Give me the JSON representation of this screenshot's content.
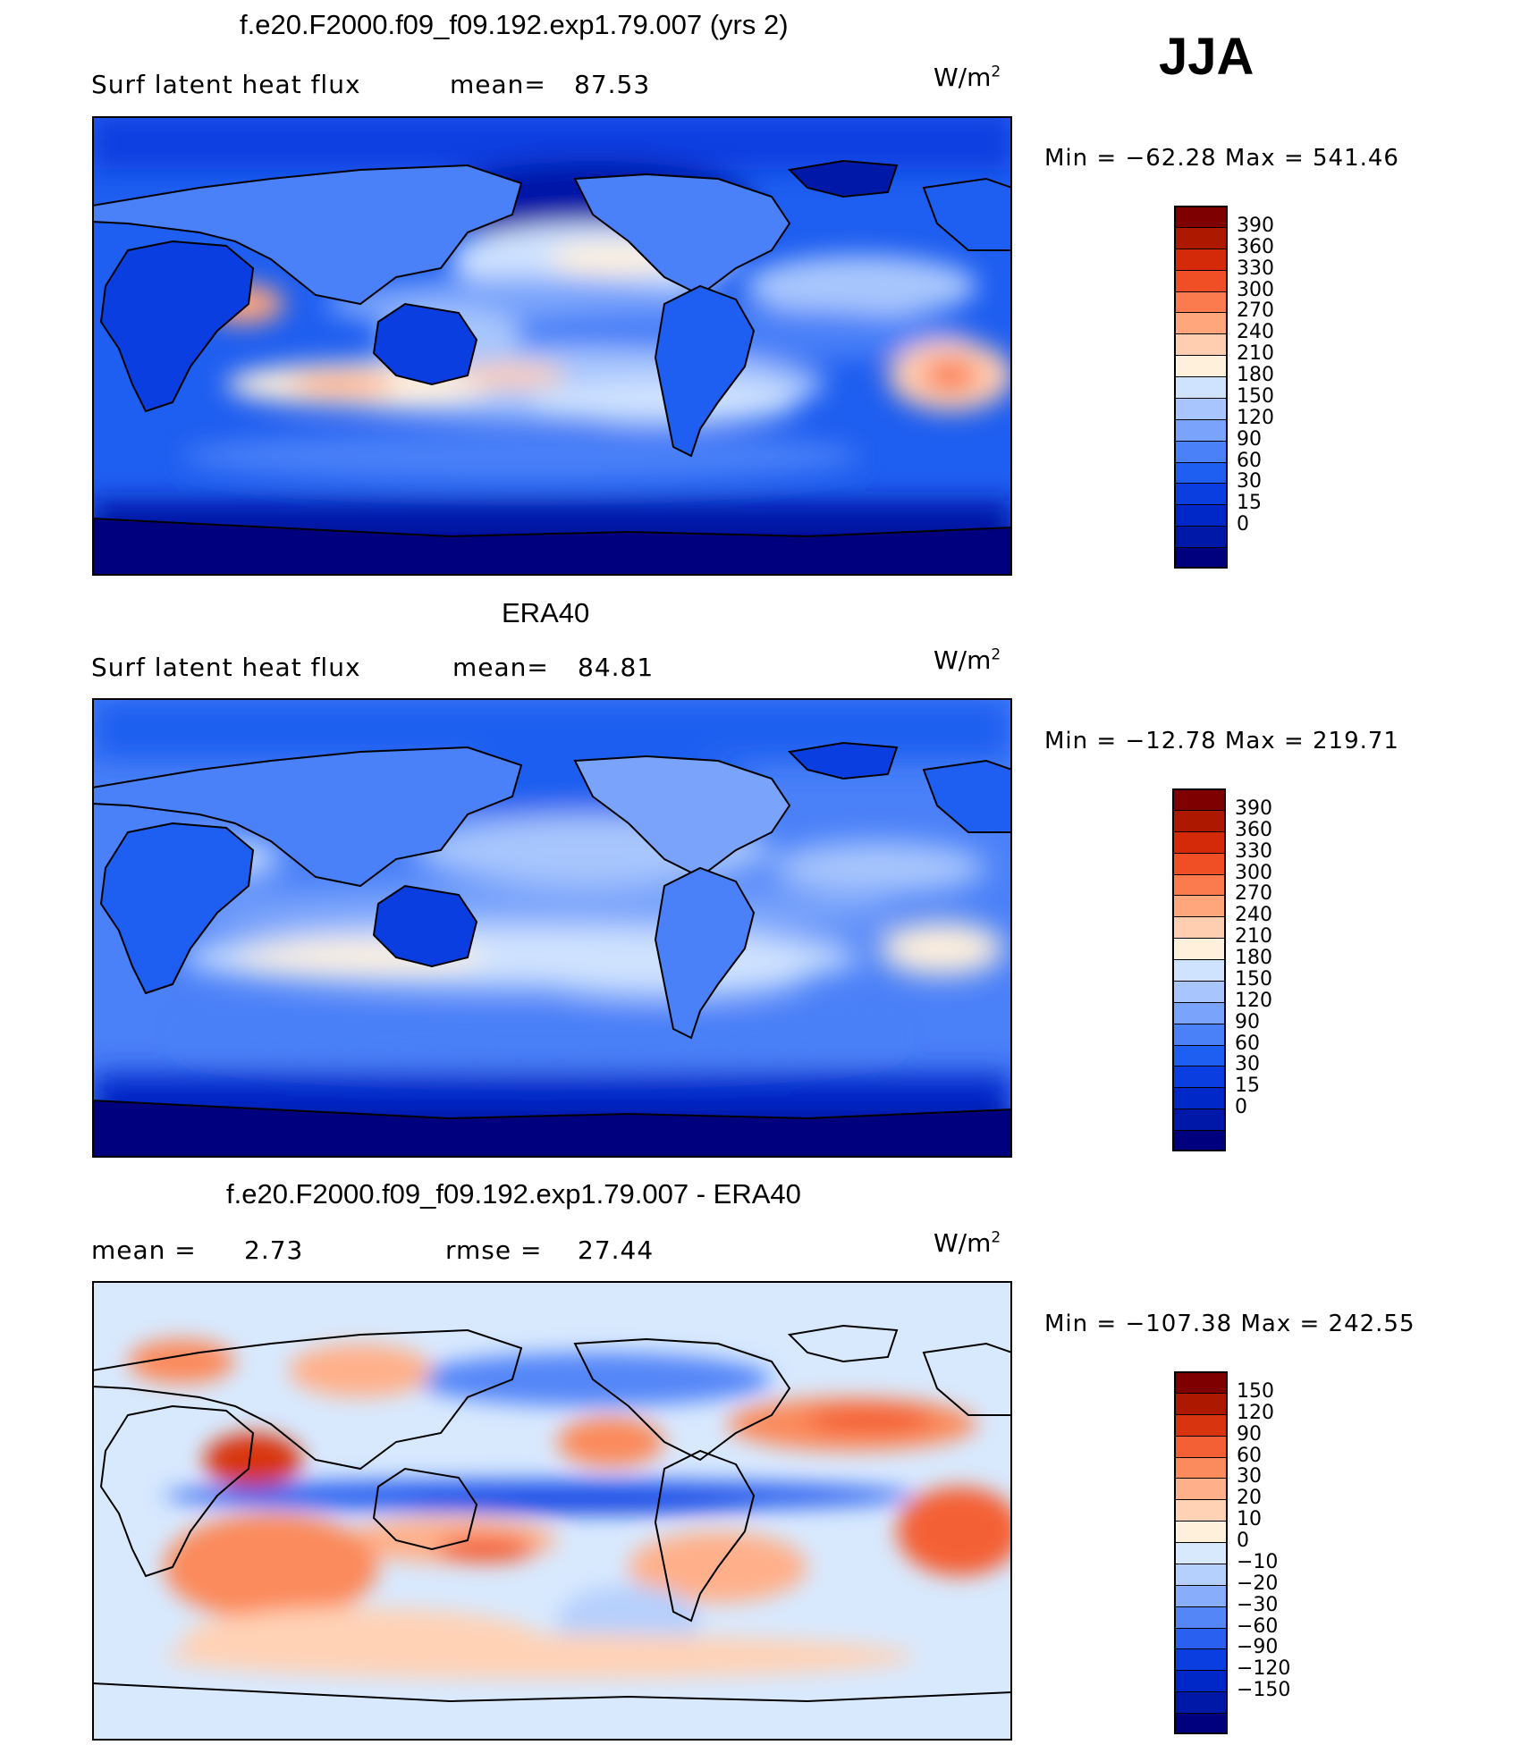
{
  "season": "JJA",
  "colors": {
    "continent_line": "#000000",
    "model_scale": [
      "#00007f",
      "#0018a8",
      "#0028c8",
      "#0a3ee0",
      "#1e5ef0",
      "#4a80f8",
      "#7aa4fb",
      "#a8c6fd",
      "#cfe2fe",
      "#fff0dc",
      "#ffcdb0",
      "#ffa67c",
      "#fb7a4e",
      "#f04e24",
      "#d42a0a",
      "#ad1800",
      "#7f0000"
    ],
    "diff_scale": [
      "#00007f",
      "#0018a8",
      "#0028c8",
      "#0a3ee0",
      "#2a60f0",
      "#5486f8",
      "#88aefb",
      "#b6d0fd",
      "#d8e9fe",
      "#fff0dc",
      "#ffd2b6",
      "#ffb08a",
      "#fb8a5c",
      "#f46036",
      "#d83410",
      "#ad1800",
      "#7f0000"
    ]
  },
  "panels": [
    {
      "title": "f.e20.F2000.f09_f09.192.exp1.79.007 (yrs 2)",
      "left_label": "Surf  latent  heat  flux",
      "stat_label": "mean=",
      "stat_value": "87.53",
      "stat2_label": "",
      "stat2_value": "",
      "units": "W/m",
      "units_exp": "2",
      "min_label": "Min  =  −62.28  Max  =  541.46",
      "colorbar_labels": [
        "390",
        "360",
        "330",
        "300",
        "270",
        "240",
        "210",
        "180",
        "150",
        "120",
        "90",
        "60",
        "30",
        "15",
        "0"
      ]
    },
    {
      "title": "ERA40",
      "left_label": "Surf  latent  heat  flux",
      "stat_label": "mean=",
      "stat_value": "84.81",
      "stat2_label": "",
      "stat2_value": "",
      "units": "W/m",
      "units_exp": "2",
      "min_label": "Min  =  −12.78  Max  =  219.71",
      "colorbar_labels": [
        "390",
        "360",
        "330",
        "300",
        "270",
        "240",
        "210",
        "180",
        "150",
        "120",
        "90",
        "60",
        "30",
        "15",
        "0"
      ]
    },
    {
      "title": "f.e20.F2000.f09_f09.192.exp1.79.007 - ERA40",
      "left_label": "mean  =",
      "stat_label": "",
      "stat_value": "2.73",
      "stat2_label": "rmse  =",
      "stat2_value": "27.44",
      "units": "W/m",
      "units_exp": "2",
      "min_label": "Min  =  −107.38  Max  =  242.55",
      "colorbar_labels": [
        "150",
        "120",
        "90",
        "60",
        "30",
        "20",
        "10",
        "0",
        "−10",
        "−20",
        "−30",
        "−60",
        "−90",
        "−120",
        "−150"
      ]
    }
  ]
}
